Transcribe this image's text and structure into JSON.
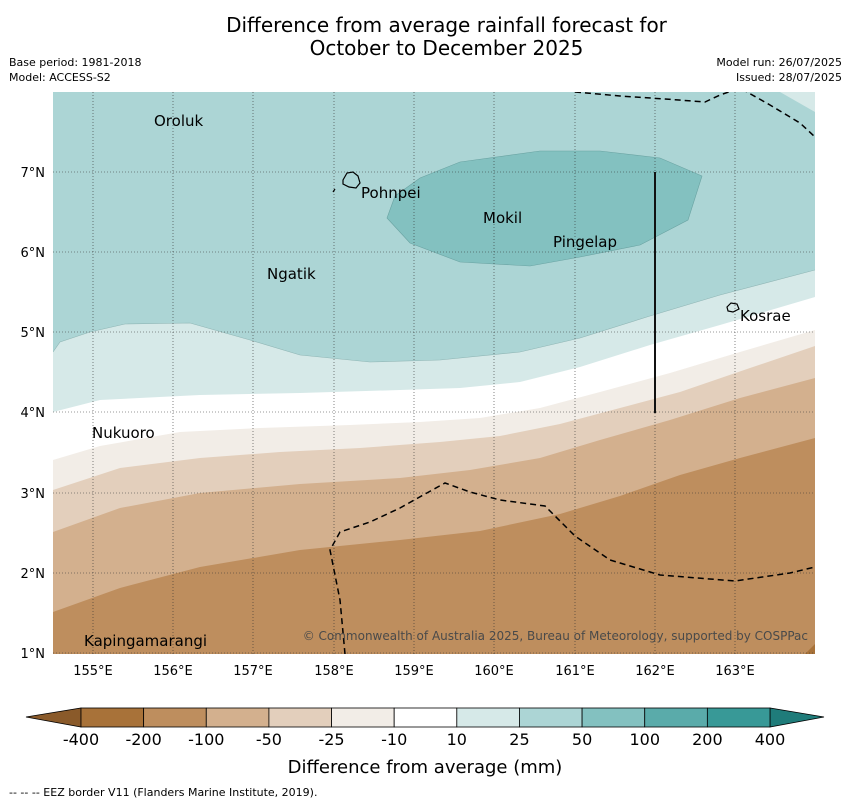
{
  "title": {
    "line1": "Difference from average rainfall forecast for",
    "line2": "October to December 2025"
  },
  "meta": {
    "base_period": "Base period: 1981-2018",
    "model": "Model: ACCESS-S2",
    "model_run": "Model run: 26/07/2025",
    "issued": "Issued: 28/07/2025"
  },
  "axes": {
    "x_ticks": [
      "155°E",
      "156°E",
      "157°E",
      "158°E",
      "159°E",
      "160°E",
      "161°E",
      "162°E",
      "163°E"
    ],
    "y_ticks": [
      "7°N",
      "6°N",
      "5°N",
      "4°N",
      "3°N",
      "2°N",
      "1°N"
    ]
  },
  "places": [
    {
      "name": "Oroluk"
    },
    {
      "name": "Pohnpei"
    },
    {
      "name": "Mokil"
    },
    {
      "name": "Pingelap"
    },
    {
      "name": "Ngatik"
    },
    {
      "name": "Kosrae"
    },
    {
      "name": "Nukuoro"
    },
    {
      "name": "Kapingamarangi"
    }
  ],
  "copyright": "© Commonwealth of Australia 2025, Bureau of Meteorology, supported by COSPPac",
  "colorbar": {
    "ticks": [
      "-400",
      "-200",
      "-100",
      "-50",
      "-25",
      "-10",
      "10",
      "25",
      "50",
      "100",
      "200",
      "400"
    ],
    "colors": [
      "#a87239",
      "#be8e5e",
      "#d3b08e",
      "#e3cfbc",
      "#f2ede7",
      "#ffffff",
      "#d6e9e8",
      "#acd5d5",
      "#83c1c0",
      "#5aabaa",
      "#389997"
    ],
    "extend_low_color": "#8a5a2a",
    "extend_high_color": "#1f7c7a",
    "label": "Difference from average (mm)"
  },
  "footnote": "--  --  -- EEZ border V11 (Flanders Marine Institute, 2019)."
}
